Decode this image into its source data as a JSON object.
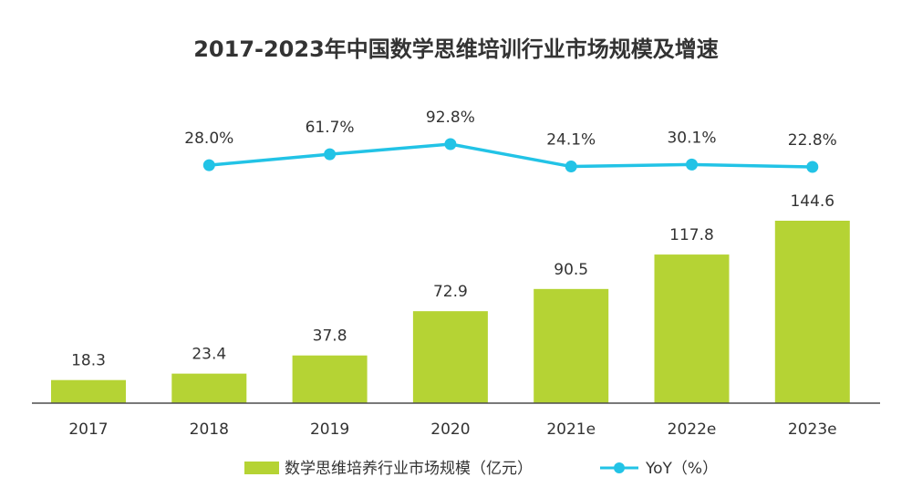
{
  "chart_data": {
    "type": "bar+line",
    "title": "2017-2023年中国数学思维培训行业市场规模及增速",
    "categories": [
      "2017",
      "2018",
      "2019",
      "2020",
      "2021e",
      "2022e",
      "2023e"
    ],
    "series": [
      {
        "name": "数学思维培养行业市场规模（亿元）",
        "type": "bar",
        "values": [
          18.3,
          23.4,
          37.8,
          72.9,
          90.5,
          117.8,
          144.6
        ],
        "labels": [
          "18.3",
          "23.4",
          "37.8",
          "72.9",
          "90.5",
          "117.8",
          "144.6"
        ]
      },
      {
        "name": "YoY（%）",
        "type": "line",
        "values": [
          null,
          28.0,
          61.7,
          92.8,
          24.1,
          30.1,
          22.8
        ],
        "labels": [
          "",
          "28.0%",
          "61.7%",
          "92.8%",
          "24.1%",
          "30.1%",
          "22.8%"
        ]
      }
    ],
    "legend_position": "bottom",
    "colors": {
      "bar": "#b5d334",
      "line": "#22c3e6",
      "axis": "#4d4d4d"
    }
  }
}
